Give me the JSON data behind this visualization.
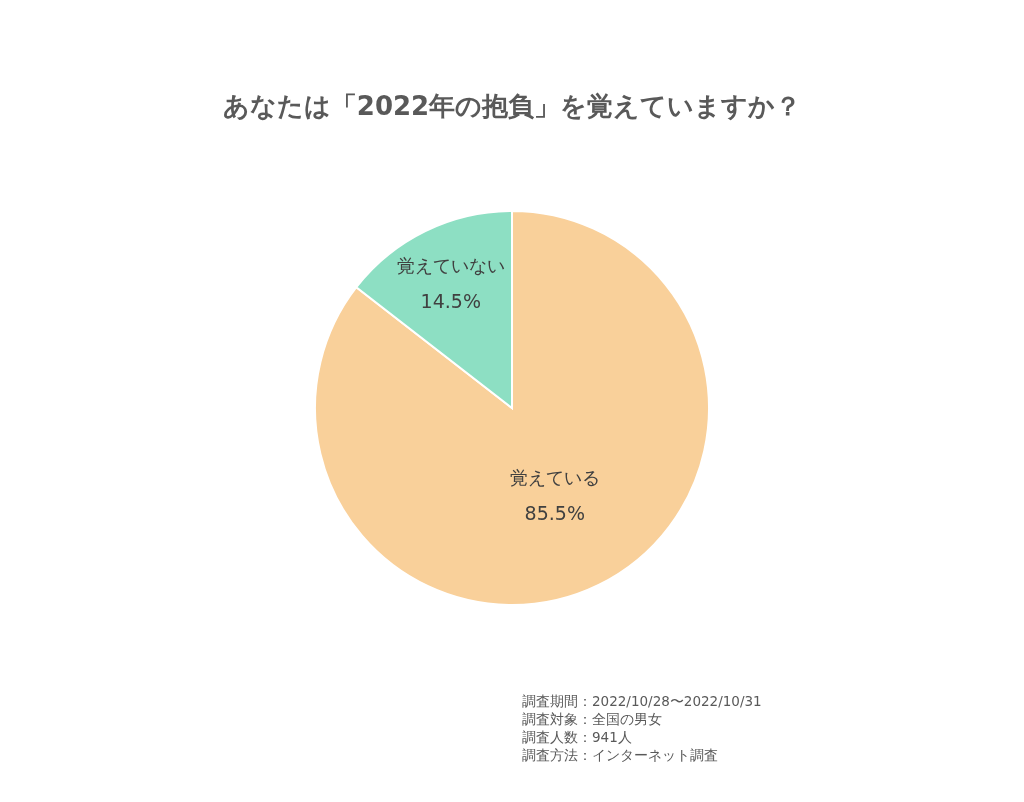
{
  "chart_data": {
    "type": "pie",
    "title": "あなたは「2022年の抱負」を覚えていますか？",
    "categories": [
      "覚えている",
      "覚えていない"
    ],
    "values": [
      85.5,
      14.5
    ],
    "colors": [
      "#f9d09a",
      "#8ddfc3"
    ],
    "value_labels": [
      "85.5%",
      "14.5%"
    ],
    "annotations": [
      "調査期間：2022/10/28〜2022/10/31",
      "調査対象：全国の男女",
      "調査人数：941人",
      "調査方法：インターネット調査"
    ]
  }
}
